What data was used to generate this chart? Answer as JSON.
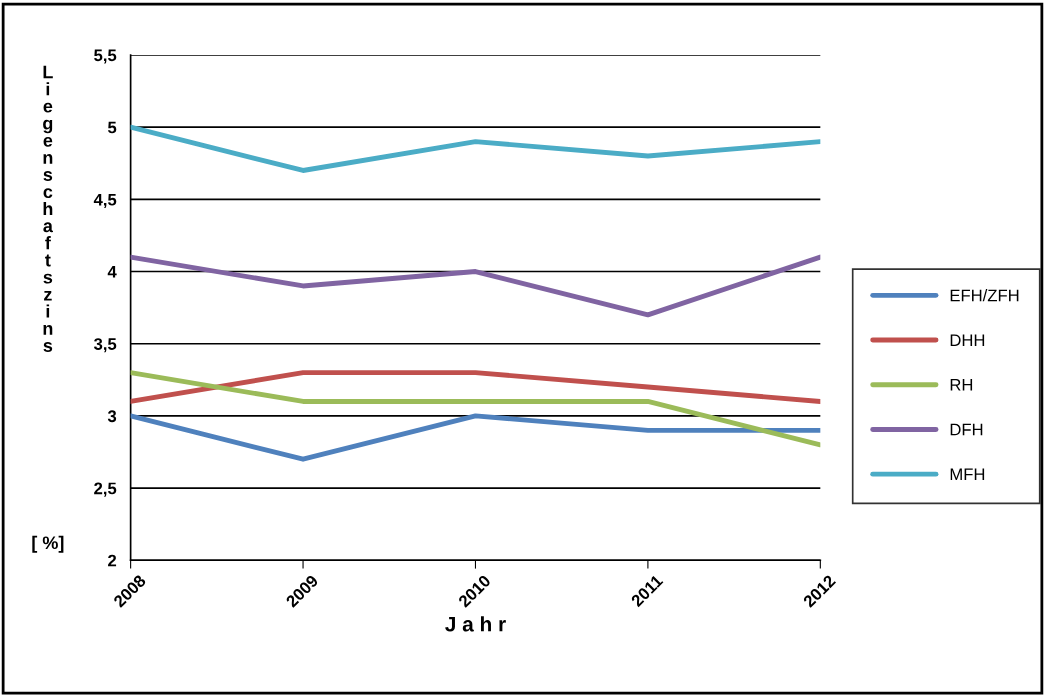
{
  "chart_data": {
    "type": "line",
    "ylabel": "Liegenschaftszins [ %]",
    "xlabel": "J a h r",
    "categories": [
      "2008",
      "2009",
      "2010",
      "2011",
      "2012"
    ],
    "series": [
      {
        "name": "EFH/ZFH",
        "color": "#4f81bd",
        "values": [
          3.0,
          2.7,
          3.0,
          2.9,
          2.9
        ]
      },
      {
        "name": "DHH",
        "color": "#c0504d",
        "values": [
          3.1,
          3.3,
          3.3,
          3.2,
          3.1
        ]
      },
      {
        "name": "RH",
        "color": "#9bbb59",
        "values": [
          3.3,
          3.1,
          3.1,
          3.1,
          2.8
        ]
      },
      {
        "name": "DFH",
        "color": "#8064a2",
        "values": [
          4.1,
          3.9,
          4.0,
          3.7,
          4.1
        ]
      },
      {
        "name": "MFH",
        "color": "#4bacc6",
        "values": [
          5.0,
          4.7,
          4.9,
          4.8,
          4.9
        ]
      }
    ],
    "ylim": [
      2,
      5.5
    ],
    "yticks": [
      2,
      {
        "value": 2.5,
        "label": "2,5"
      },
      3,
      {
        "value": 3.5,
        "label": "3,5"
      },
      4,
      {
        "value": 4.5,
        "label": "4,5"
      },
      5,
      {
        "value": 5.5,
        "label": "5,5"
      }
    ],
    "grid": "y",
    "legend": "right",
    "marker": "none",
    "line_style": "solid"
  }
}
